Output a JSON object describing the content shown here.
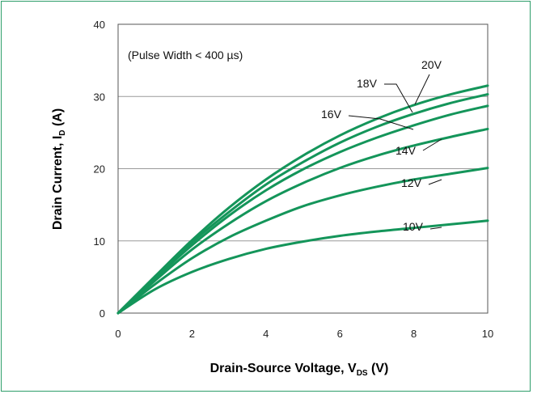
{
  "chart_data": {
    "type": "line",
    "xlabel": "Drain-Source Voltage, V",
    "xlabel_sub": "DS",
    "xlabel_unit": " (V)",
    "ylabel": "Drain Current, I",
    "ylabel_sub": "D",
    "ylabel_unit": " (A)",
    "xlim": [
      0,
      10
    ],
    "ylim": [
      0,
      40
    ],
    "x_ticks": [
      0,
      2,
      4,
      6,
      8,
      10
    ],
    "y_ticks": [
      0,
      10,
      20,
      30,
      40
    ],
    "grid": "horizontal",
    "annotation": "(Pulse Width < 400 µs)",
    "line_color": "#14955a",
    "series": [
      {
        "name": "10V",
        "x": [
          0,
          1,
          2,
          3,
          4,
          5,
          6,
          7,
          8,
          9,
          10
        ],
        "values": [
          0,
          3.3,
          5.7,
          7.5,
          8.9,
          9.9,
          10.7,
          11.3,
          11.8,
          12.3,
          12.8
        ]
      },
      {
        "name": "12V",
        "x": [
          0,
          1,
          2,
          3,
          4,
          5,
          6,
          7,
          8,
          9,
          10
        ],
        "values": [
          0,
          4.0,
          7.6,
          10.5,
          12.8,
          14.8,
          16.3,
          17.5,
          18.5,
          19.3,
          20.1
        ]
      },
      {
        "name": "14V",
        "x": [
          0,
          1,
          2,
          3,
          4,
          5,
          6,
          7,
          8,
          9,
          10
        ],
        "values": [
          0,
          4.5,
          8.8,
          12.4,
          15.5,
          18.0,
          20.1,
          21.8,
          23.2,
          24.4,
          25.5
        ]
      },
      {
        "name": "16V",
        "x": [
          0,
          1,
          2,
          3,
          4,
          5,
          6,
          7,
          8,
          9,
          10
        ],
        "values": [
          0,
          4.8,
          9.4,
          13.5,
          17.0,
          19.9,
          22.3,
          24.3,
          26.0,
          27.5,
          28.7
        ]
      },
      {
        "name": "18V",
        "x": [
          0,
          1,
          2,
          3,
          4,
          5,
          6,
          7,
          8,
          9,
          10
        ],
        "values": [
          0,
          5.0,
          9.8,
          14.0,
          17.8,
          20.9,
          23.6,
          25.8,
          27.6,
          29.1,
          30.3
        ]
      },
      {
        "name": "20V",
        "x": [
          0,
          1,
          2,
          3,
          4,
          5,
          6,
          7,
          8,
          9,
          10
        ],
        "values": [
          0,
          5.1,
          10.1,
          14.6,
          18.5,
          21.8,
          24.6,
          26.9,
          28.8,
          30.3,
          31.5
        ]
      }
    ]
  }
}
